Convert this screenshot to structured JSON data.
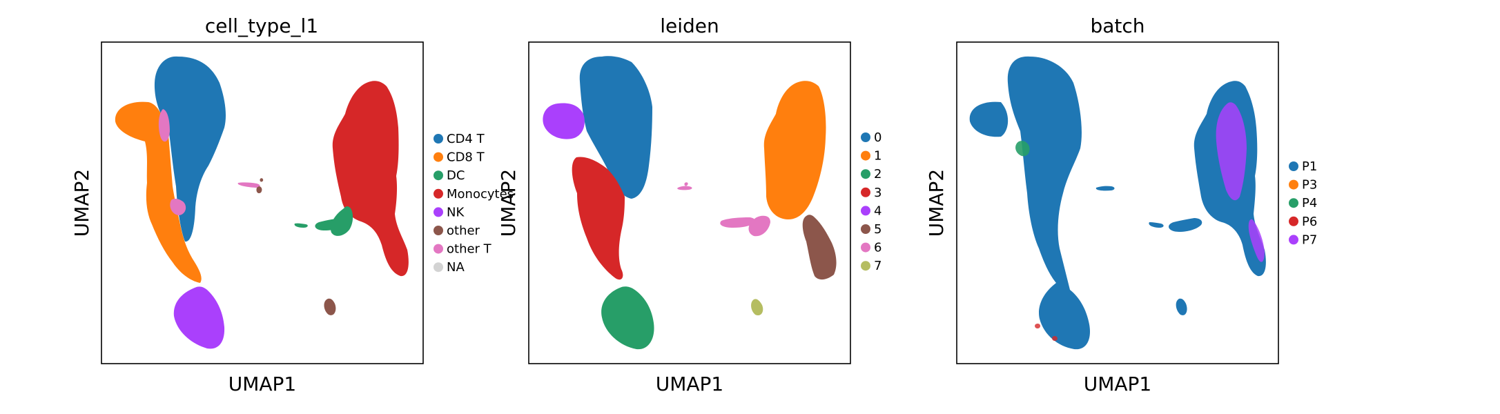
{
  "chart_data": [
    {
      "type": "scatter",
      "title": "cell_type_l1",
      "xlabel": "UMAP1",
      "ylabel": "UMAP2",
      "grid": false,
      "ticks": false,
      "legend_position": "right",
      "series": [
        {
          "name": "CD4 T",
          "color": "#1f77b4"
        },
        {
          "name": "CD8 T",
          "color": "#ff7f0e"
        },
        {
          "name": "DC",
          "color": "#279e68"
        },
        {
          "name": "Monocytes",
          "color": "#d62728"
        },
        {
          "name": "NK",
          "color": "#aa40fc"
        },
        {
          "name": "other",
          "color": "#8c564b"
        },
        {
          "name": "other T",
          "color": "#e377c2"
        },
        {
          "name": "NA",
          "color": "#d3d3d3"
        }
      ]
    },
    {
      "type": "scatter",
      "title": "leiden",
      "xlabel": "UMAP1",
      "ylabel": "UMAP2",
      "grid": false,
      "ticks": false,
      "legend_position": "right",
      "series": [
        {
          "name": "0",
          "color": "#1f77b4"
        },
        {
          "name": "1",
          "color": "#ff7f0e"
        },
        {
          "name": "2",
          "color": "#279e68"
        },
        {
          "name": "3",
          "color": "#d62728"
        },
        {
          "name": "4",
          "color": "#aa40fc"
        },
        {
          "name": "5",
          "color": "#8c564b"
        },
        {
          "name": "6",
          "color": "#e377c2"
        },
        {
          "name": "7",
          "color": "#b5bd61"
        }
      ]
    },
    {
      "type": "scatter",
      "title": "batch",
      "xlabel": "UMAP1",
      "ylabel": "UMAP2",
      "grid": false,
      "ticks": false,
      "legend_position": "right",
      "series": [
        {
          "name": "P1",
          "color": "#1f77b4"
        },
        {
          "name": "P3",
          "color": "#ff7f0e"
        },
        {
          "name": "P4",
          "color": "#279e68"
        },
        {
          "name": "P6",
          "color": "#d62728"
        },
        {
          "name": "P7",
          "color": "#aa40fc"
        }
      ]
    }
  ]
}
